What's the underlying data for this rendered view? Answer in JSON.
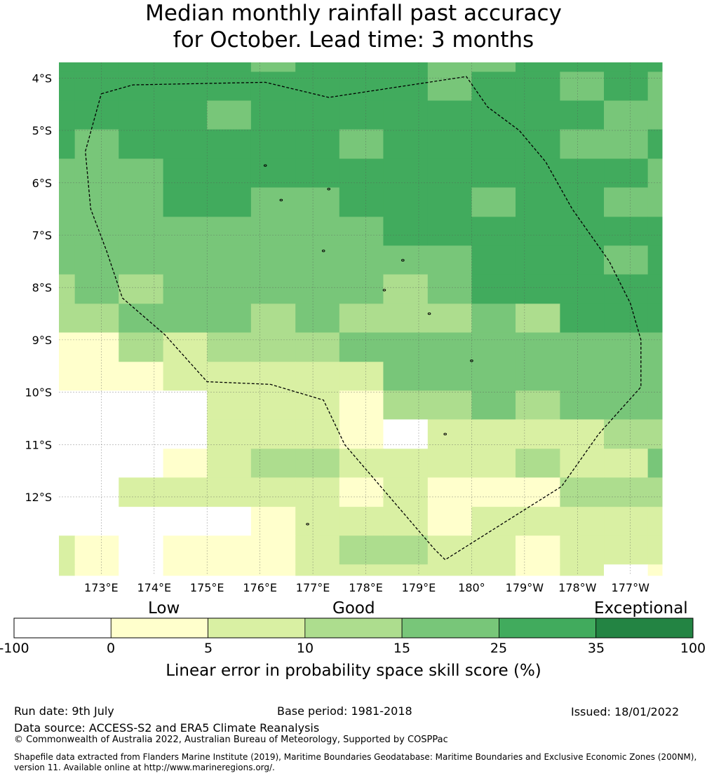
{
  "title": {
    "line1": "Median monthly rainfall past accuracy",
    "line2": "for October. Lead time: 3 months"
  },
  "map": {
    "lon_range": [
      172.2,
      183.6
    ],
    "lat_range": [
      -13.5,
      -3.7
    ],
    "lat_ticks": [
      {
        "value": -4,
        "label": "4°S"
      },
      {
        "value": -5,
        "label": "5°S"
      },
      {
        "value": -6,
        "label": "6°S"
      },
      {
        "value": -7,
        "label": "7°S"
      },
      {
        "value": -8,
        "label": "8°S"
      },
      {
        "value": -9,
        "label": "9°S"
      },
      {
        "value": -10,
        "label": "10°S"
      },
      {
        "value": -11,
        "label": "11°S"
      },
      {
        "value": -12,
        "label": "12°S"
      }
    ],
    "lon_ticks": [
      {
        "value": 173,
        "label": "173°E"
      },
      {
        "value": 174,
        "label": "174°E"
      },
      {
        "value": 175,
        "label": "175°E"
      },
      {
        "value": 176,
        "label": "176°E"
      },
      {
        "value": 177,
        "label": "177°E"
      },
      {
        "value": 178,
        "label": "178°E"
      },
      {
        "value": 179,
        "label": "179°E"
      },
      {
        "value": 180,
        "label": "180°"
      },
      {
        "value": 181,
        "label": "179°W"
      },
      {
        "value": 182,
        "label": "178°W"
      },
      {
        "value": 183,
        "label": "177°W"
      }
    ],
    "grid": {
      "lon_edges": [
        172.2,
        172.5,
        173.33,
        174.17,
        175.0,
        175.83,
        176.67,
        177.5,
        178.33,
        179.17,
        180.0,
        180.83,
        181.67,
        182.5,
        183.33,
        183.6
      ],
      "lat_edges": [
        -3.7,
        -3.88,
        -4.43,
        -4.98,
        -5.54,
        -6.09,
        -6.65,
        -7.2,
        -7.75,
        -8.31,
        -8.86,
        -9.42,
        -9.97,
        -10.52,
        -11.08,
        -11.63,
        -12.19,
        -12.74,
        -13.29,
        -13.5
      ],
      "color_classes": [
        [
          5,
          5,
          5,
          5,
          5,
          4,
          5,
          5,
          5,
          4,
          4,
          5,
          5,
          5,
          5
        ],
        [
          5,
          5,
          5,
          5,
          5,
          5,
          5,
          5,
          5,
          4,
          5,
          5,
          4,
          5,
          4
        ],
        [
          5,
          5,
          5,
          5,
          4,
          5,
          5,
          5,
          5,
          5,
          5,
          5,
          5,
          4,
          4
        ],
        [
          5,
          4,
          5,
          5,
          5,
          5,
          5,
          4,
          5,
          5,
          5,
          5,
          4,
          4,
          5
        ],
        [
          4,
          4,
          4,
          5,
          5,
          5,
          5,
          5,
          5,
          5,
          5,
          5,
          5,
          5,
          4
        ],
        [
          4,
          4,
          4,
          5,
          5,
          4,
          4,
          5,
          5,
          5,
          4,
          5,
          5,
          4,
          4
        ],
        [
          4,
          4,
          4,
          4,
          4,
          4,
          4,
          4,
          5,
          5,
          5,
          5,
          5,
          5,
          5
        ],
        [
          4,
          4,
          4,
          4,
          4,
          4,
          4,
          4,
          4,
          4,
          5,
          5,
          5,
          4,
          5
        ],
        [
          3,
          4,
          3,
          4,
          4,
          4,
          4,
          4,
          3,
          4,
          5,
          5,
          5,
          5,
          5
        ],
        [
          3,
          3,
          4,
          4,
          4,
          3,
          4,
          3,
          3,
          3,
          4,
          3,
          5,
          5,
          5
        ],
        [
          1,
          1,
          3,
          2,
          3,
          3,
          3,
          4,
          4,
          4,
          4,
          4,
          4,
          4,
          4
        ],
        [
          1,
          1,
          1,
          2,
          2,
          2,
          2,
          2,
          4,
          4,
          4,
          4,
          4,
          4,
          4
        ],
        [
          0,
          0,
          0,
          0,
          2,
          2,
          2,
          1,
          3,
          3,
          4,
          3,
          4,
          4,
          4
        ],
        [
          0,
          0,
          0,
          0,
          2,
          2,
          2,
          1,
          0,
          2,
          2,
          2,
          2,
          3,
          3
        ],
        [
          0,
          0,
          0,
          1,
          2,
          3,
          3,
          2,
          2,
          2,
          2,
          3,
          2,
          2,
          4
        ],
        [
          0,
          0,
          2,
          2,
          2,
          2,
          2,
          1,
          2,
          1,
          1,
          1,
          3,
          3,
          3
        ],
        [
          0,
          0,
          0,
          0,
          0,
          1,
          2,
          2,
          2,
          1,
          2,
          2,
          2,
          2,
          2
        ],
        [
          2,
          1,
          0,
          1,
          1,
          1,
          2,
          3,
          3,
          2,
          2,
          1,
          2,
          2,
          2
        ],
        [
          2,
          1,
          0,
          1,
          1,
          1,
          2,
          2,
          2,
          2,
          2,
          1,
          2,
          0,
          1
        ]
      ]
    },
    "eez_boundary_lonlat": [
      [
        173.0,
        -4.3
      ],
      [
        173.6,
        -4.13
      ],
      [
        176.1,
        -4.08
      ],
      [
        177.3,
        -4.37
      ],
      [
        179.9,
        -3.97
      ],
      [
        180.3,
        -4.55
      ],
      [
        180.9,
        -5.0
      ],
      [
        181.4,
        -5.6
      ],
      [
        181.9,
        -6.5
      ],
      [
        182.6,
        -7.5
      ],
      [
        183.0,
        -8.3
      ],
      [
        183.2,
        -9.0
      ],
      [
        183.2,
        -9.9
      ],
      [
        182.4,
        -10.8
      ],
      [
        181.7,
        -11.8
      ],
      [
        179.5,
        -13.2
      ],
      [
        179.3,
        -13.0
      ],
      [
        177.6,
        -11.0
      ],
      [
        177.2,
        -10.15
      ],
      [
        176.2,
        -9.85
      ],
      [
        175.0,
        -9.8
      ],
      [
        174.2,
        -8.9
      ],
      [
        173.4,
        -8.2
      ],
      [
        173.1,
        -7.3
      ],
      [
        172.8,
        -6.5
      ],
      [
        172.7,
        -5.4
      ],
      [
        173.0,
        -4.3
      ]
    ],
    "islands_lonlat": [
      [
        176.1,
        -5.67
      ],
      [
        176.4,
        -6.33
      ],
      [
        177.3,
        -6.12
      ],
      [
        177.2,
        -7.3
      ],
      [
        178.7,
        -7.48
      ],
      [
        178.35,
        -8.05
      ],
      [
        179.2,
        -8.5
      ],
      [
        180.0,
        -9.4
      ],
      [
        179.5,
        -10.8
      ],
      [
        176.9,
        -12.52
      ]
    ]
  },
  "colorbar": {
    "colors": [
      "#ffffff",
      "#ffffcc",
      "#d9f0a3",
      "#addd8e",
      "#78c679",
      "#41ab5d",
      "#238443"
    ],
    "tick_labels": [
      "-100",
      "0",
      "5",
      "10",
      "15",
      "25",
      "35",
      "100"
    ],
    "categories": [
      "Low",
      "Good",
      "Exceptional"
    ],
    "label": "Linear error in probability space skill score (%)"
  },
  "footer": {
    "run_date": "Run date: 9th July",
    "base_period": "Base period: 1981-2018",
    "issued": "Issued: 18/01/2022",
    "data_source": "Data source: ACCESS-S2 and ERA5 Climate Reanalysis",
    "copyright": "© Commonwealth of Australia 2022, Australian Bureau of Meteorology, Supported by COSPPac",
    "shapefile_line1": "Shapefile data extracted from Flanders Marine Institute (2019), Maritime Boundaries Geodatabase: Maritime Boundaries and Exclusive Economic Zones (200NM),",
    "shapefile_line2": "version 11. Available online at http://www.marineregions.org/."
  }
}
